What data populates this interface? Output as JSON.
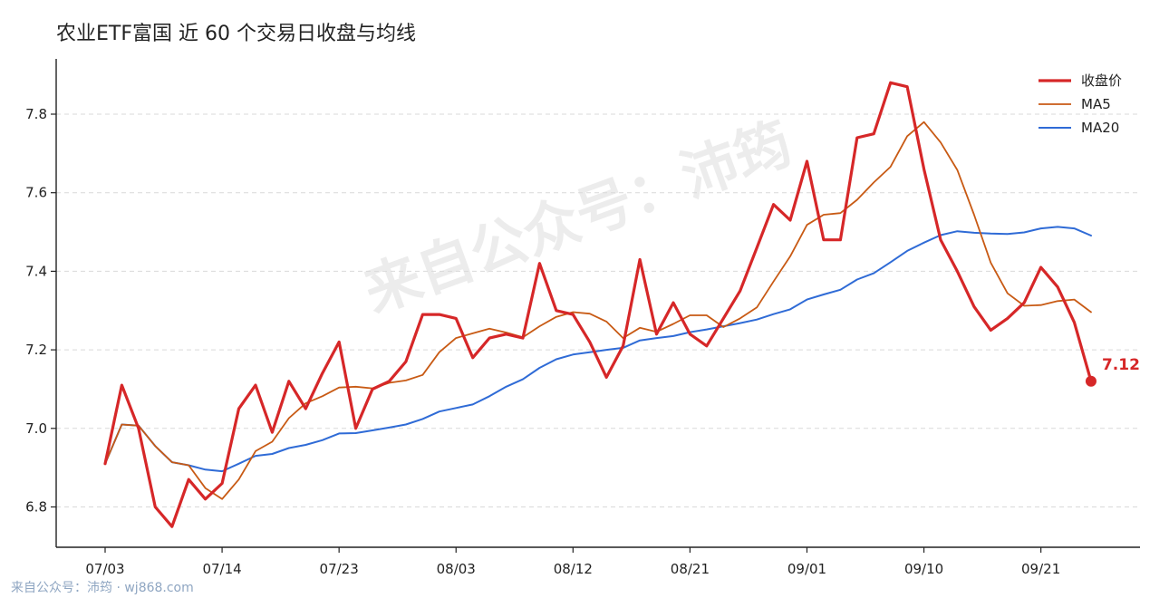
{
  "chart_data": {
    "type": "line",
    "title": "农业ETF富国 近 60 个交易日收盘与均线",
    "xlabel": "",
    "ylabel": "",
    "ylim": [
      6.7,
      7.95
    ],
    "yticks": [
      6.8,
      7.0,
      7.2,
      7.4,
      7.6,
      7.8
    ],
    "ytick_labels": [
      "6.8",
      "7.0",
      "7.2",
      "7.4",
      "7.6",
      "7.8"
    ],
    "xticks": [
      {
        "index": 0,
        "label": "07/03"
      },
      {
        "index": 7,
        "label": "07/14"
      },
      {
        "index": 14,
        "label": "07/23"
      },
      {
        "index": 21,
        "label": "08/03"
      },
      {
        "index": 28,
        "label": "08/12"
      },
      {
        "index": 35,
        "label": "08/21"
      },
      {
        "index": 42,
        "label": "09/01"
      },
      {
        "index": 49,
        "label": "09/10"
      },
      {
        "index": 56,
        "label": "09/21"
      }
    ],
    "grid": "y-dashed",
    "legend_position": "top-right",
    "series": [
      {
        "name": "收盘价",
        "color": "#d62728",
        "values": [
          6.91,
          7.11,
          7.0,
          6.8,
          6.75,
          6.87,
          6.82,
          6.86,
          7.05,
          7.11,
          6.99,
          7.12,
          7.05,
          7.14,
          7.22,
          7.0,
          7.1,
          7.12,
          7.17,
          7.29,
          7.29,
          7.28,
          7.18,
          7.23,
          7.24,
          7.23,
          7.42,
          7.3,
          7.29,
          7.22,
          7.13,
          7.21,
          7.43,
          7.24,
          7.32,
          7.24,
          7.21,
          7.28,
          7.35,
          7.46,
          7.57,
          7.53,
          7.68,
          7.48,
          7.48,
          7.74,
          7.75,
          7.88,
          7.87,
          7.66,
          7.48,
          7.4,
          7.31,
          7.25,
          7.28,
          7.32,
          7.41,
          7.36,
          7.27,
          7.12
        ]
      },
      {
        "name": "MA5",
        "color": "#c85a14",
        "values": [
          6.91,
          7.01,
          7.007,
          6.955,
          6.914,
          6.906,
          6.848,
          6.82,
          6.87,
          6.942,
          6.966,
          7.026,
          7.064,
          7.082,
          7.104,
          7.106,
          7.102,
          7.116,
          7.122,
          7.136,
          7.194,
          7.23,
          7.242,
          7.254,
          7.244,
          7.232,
          7.26,
          7.284,
          7.296,
          7.292,
          7.272,
          7.23,
          7.256,
          7.246,
          7.266,
          7.288,
          7.288,
          7.258,
          7.28,
          7.308,
          7.374,
          7.438,
          7.518,
          7.544,
          7.548,
          7.582,
          7.626,
          7.666,
          7.744,
          7.78,
          7.728,
          7.658,
          7.544,
          7.422,
          7.344,
          7.312,
          7.314,
          7.324,
          7.328,
          7.296
        ]
      },
      {
        "name": "MA20",
        "color": "#2f6bd6",
        "values": [
          6.91,
          7.01,
          7.007,
          6.955,
          6.914,
          6.906,
          6.895,
          6.891,
          6.91,
          6.93,
          6.935,
          6.95,
          6.958,
          6.97,
          6.987,
          6.988,
          6.995,
          7.002,
          7.01,
          7.024,
          7.043,
          7.052,
          7.061,
          7.082,
          7.106,
          7.125,
          7.154,
          7.176,
          7.188,
          7.194,
          7.2,
          7.205,
          7.224,
          7.23,
          7.235,
          7.245,
          7.252,
          7.26,
          7.268,
          7.277,
          7.291,
          7.303,
          7.328,
          7.341,
          7.353,
          7.379,
          7.395,
          7.423,
          7.452,
          7.473,
          7.492,
          7.502,
          7.498,
          7.496,
          7.495,
          7.499,
          7.509,
          7.513,
          7.509,
          7.491
        ]
      }
    ],
    "last_point_label": "7.12"
  },
  "watermark": "来自公众号：沛筠",
  "footer": "来自公众号：沛筠 · wj868.com"
}
